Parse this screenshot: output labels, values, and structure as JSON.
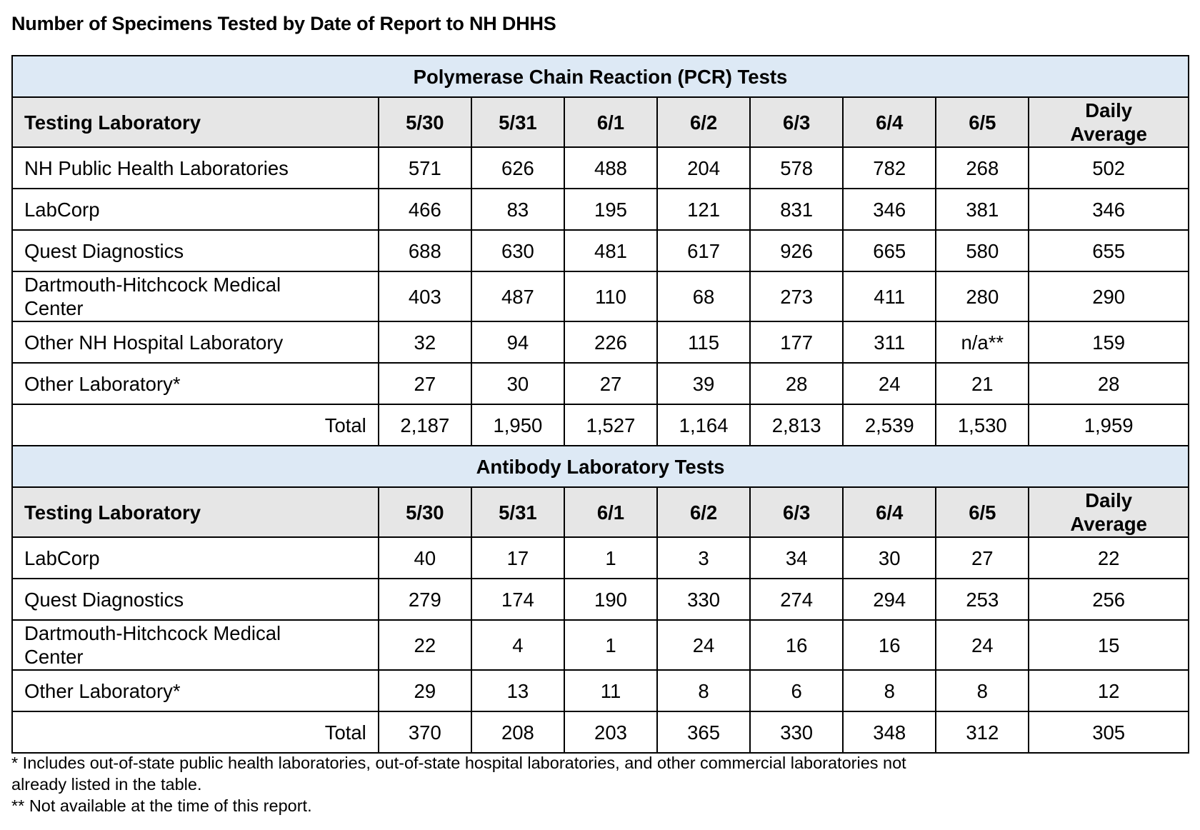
{
  "title": "Number of Specimens Tested by Date of Report to NH DHHS",
  "pcr": {
    "section_title": "Polymerase Chain Reaction (PCR) Tests",
    "header": {
      "lab": "Testing Laboratory",
      "dates": [
        "5/30",
        "5/31",
        "6/1",
        "6/2",
        "6/3",
        "6/4",
        "6/5"
      ],
      "avg_line1": "Daily",
      "avg_line2": "Average"
    },
    "rows": [
      {
        "lab": "NH Public Health Laboratories",
        "values": [
          "571",
          "626",
          "488",
          "204",
          "578",
          "782",
          "268"
        ],
        "avg": "502"
      },
      {
        "lab": "LabCorp",
        "values": [
          "466",
          "83",
          "195",
          "121",
          "831",
          "346",
          "381"
        ],
        "avg": "346"
      },
      {
        "lab": "Quest Diagnostics",
        "values": [
          "688",
          "630",
          "481",
          "617",
          "926",
          "665",
          "580"
        ],
        "avg": "655"
      },
      {
        "lab_line1": "Dartmouth-Hitchcock Medical",
        "lab_line2": "Center",
        "values": [
          "403",
          "487",
          "110",
          "68",
          "273",
          "411",
          "280"
        ],
        "avg": "290"
      },
      {
        "lab": "Other NH Hospital Laboratory",
        "values": [
          "32",
          "94",
          "226",
          "115",
          "177",
          "311",
          "n/a**"
        ],
        "avg": "159"
      },
      {
        "lab": "Other Laboratory*",
        "values": [
          "27",
          "30",
          "27",
          "39",
          "28",
          "24",
          "21"
        ],
        "avg": "28"
      }
    ],
    "total": {
      "label": "Total",
      "values": [
        "2,187",
        "1,950",
        "1,527",
        "1,164",
        "2,813",
        "2,539",
        "1,530"
      ],
      "avg": "1,959"
    }
  },
  "antibody": {
    "section_title": "Antibody Laboratory Tests",
    "header": {
      "lab": "Testing Laboratory",
      "dates": [
        "5/30",
        "5/31",
        "6/1",
        "6/2",
        "6/3",
        "6/4",
        "6/5"
      ],
      "avg_line1": "Daily",
      "avg_line2": "Average"
    },
    "rows": [
      {
        "lab": "LabCorp",
        "values": [
          "40",
          "17",
          "1",
          "3",
          "34",
          "30",
          "27"
        ],
        "avg": "22"
      },
      {
        "lab": "Quest Diagnostics",
        "values": [
          "279",
          "174",
          "190",
          "330",
          "274",
          "294",
          "253"
        ],
        "avg": "256"
      },
      {
        "lab_line1": "Dartmouth-Hitchcock Medical",
        "lab_line2": "Center",
        "values": [
          "22",
          "4",
          "1",
          "24",
          "16",
          "16",
          "24"
        ],
        "avg": "15"
      },
      {
        "lab": "Other Laboratory*",
        "values": [
          "29",
          "13",
          "11",
          "8",
          "6",
          "8",
          "8"
        ],
        "avg": "12"
      }
    ],
    "total": {
      "label": "Total",
      "values": [
        "370",
        "208",
        "203",
        "365",
        "330",
        "348",
        "312"
      ],
      "avg": "305"
    }
  },
  "footnotes": {
    "note1_line1": "* Includes out-of-state public health laboratories, out-of-state hospital laboratories, and other commercial laboratories not",
    "note1_line2": "already listed in the table.",
    "note2": "** Not available at the time of this report."
  }
}
